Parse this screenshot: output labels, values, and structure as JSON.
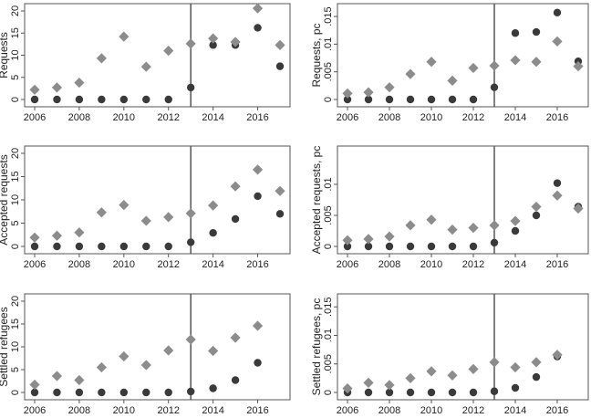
{
  "colors": {
    "series_circle": "#3a3a3a",
    "series_diamond": "#8c8c8c",
    "frame": "#555555",
    "vline": "#555555"
  },
  "chart_data": [
    {
      "type": "scatter",
      "ylabel": "Requests",
      "xlim": [
        2006,
        2017
      ],
      "ylim": [
        0,
        20
      ],
      "xticks": [
        2006,
        2008,
        2010,
        2012,
        2014,
        2016
      ],
      "xtick_labels": [
        "2006",
        "2008",
        "2010",
        "2012",
        "2014",
        "2016"
      ],
      "yticks": [
        0,
        5,
        10,
        15,
        20
      ],
      "ytick_labels": [
        "0",
        "5",
        "10",
        "15",
        "20"
      ],
      "vline": 2013,
      "grid": false,
      "legend": "none",
      "series": [
        {
          "marker": "circle",
          "x": [
            2006,
            2007,
            2008,
            2009,
            2010,
            2011,
            2012,
            2013,
            2014,
            2015,
            2016,
            2017
          ],
          "values": [
            0,
            0,
            0,
            0,
            0,
            0,
            0,
            2.7,
            12.3,
            12.3,
            16.2,
            7.5
          ]
        },
        {
          "marker": "diamond",
          "x": [
            2006,
            2007,
            2008,
            2009,
            2010,
            2011,
            2012,
            2013,
            2014,
            2015,
            2016,
            2017
          ],
          "values": [
            2.2,
            2.7,
            3.8,
            9.3,
            14.2,
            7.4,
            11.0,
            12.6,
            13.8,
            13.0,
            20.6,
            12.3
          ]
        }
      ]
    },
    {
      "type": "scatter",
      "ylabel": "Requests, pc",
      "xlim": [
        2006,
        2017
      ],
      "ylim": [
        0,
        0.016
      ],
      "xticks": [
        2006,
        2008,
        2010,
        2012,
        2014,
        2016
      ],
      "xtick_labels": [
        "2006",
        "2008",
        "2010",
        "2012",
        "2014",
        "2016"
      ],
      "yticks": [
        0,
        0.005,
        0.01,
        0.015
      ],
      "ytick_labels": [
        "0",
        ".005",
        ".01",
        ".015"
      ],
      "vline": 2013,
      "grid": false,
      "legend": "none",
      "series": [
        {
          "marker": "circle",
          "x": [
            2006,
            2007,
            2008,
            2009,
            2010,
            2011,
            2012,
            2013,
            2014,
            2015,
            2016,
            2017
          ],
          "values": [
            0,
            0,
            0,
            0,
            0,
            0,
            0,
            0.0022,
            0.012,
            0.0122,
            0.0157,
            0.0069
          ]
        },
        {
          "marker": "diamond",
          "x": [
            2006,
            2007,
            2008,
            2009,
            2010,
            2011,
            2012,
            2013,
            2014,
            2015,
            2016,
            2017
          ],
          "values": [
            0.0011,
            0.0013,
            0.0022,
            0.0046,
            0.0068,
            0.0034,
            0.0057,
            0.0061,
            0.0071,
            0.0068,
            0.0105,
            0.006
          ]
        }
      ]
    },
    {
      "type": "scatter",
      "ylabel": "Accepted requests",
      "xlim": [
        2006,
        2017
      ],
      "ylim": [
        0,
        20
      ],
      "xticks": [
        2006,
        2008,
        2010,
        2012,
        2014,
        2016
      ],
      "xtick_labels": [
        "2006",
        "2008",
        "2010",
        "2012",
        "2014",
        "2016"
      ],
      "yticks": [
        0,
        5,
        10,
        15,
        20
      ],
      "ytick_labels": [
        "0",
        "5",
        "10",
        "15",
        "20"
      ],
      "vline": 2013,
      "grid": false,
      "legend": "none",
      "series": [
        {
          "marker": "circle",
          "x": [
            2006,
            2007,
            2008,
            2009,
            2010,
            2011,
            2012,
            2013,
            2014,
            2015,
            2016,
            2017
          ],
          "values": [
            0,
            0,
            0,
            0,
            0,
            0,
            0,
            0.9,
            2.9,
            5.9,
            10.8,
            7.0
          ]
        },
        {
          "marker": "diamond",
          "x": [
            2006,
            2007,
            2008,
            2009,
            2010,
            2011,
            2012,
            2013,
            2014,
            2015,
            2016,
            2017
          ],
          "values": [
            1.9,
            2.3,
            3.0,
            7.3,
            8.9,
            5.5,
            6.3,
            7.1,
            8.8,
            12.9,
            16.5,
            11.9
          ]
        }
      ]
    },
    {
      "type": "scatter",
      "ylabel": "Accepted requests, pc",
      "xlim": [
        2006,
        2017
      ],
      "ylim": [
        0,
        0.015
      ],
      "xticks": [
        2006,
        2008,
        2010,
        2012,
        2014,
        2016
      ],
      "xtick_labels": [
        "2006",
        "2008",
        "2010",
        "2012",
        "2014",
        "2016"
      ],
      "yticks": [
        0,
        0.005,
        0.01
      ],
      "ytick_labels": [
        "0",
        ".005",
        ".01"
      ],
      "vline": 2013,
      "grid": false,
      "legend": "none",
      "series": [
        {
          "marker": "circle",
          "x": [
            2006,
            2007,
            2008,
            2009,
            2010,
            2011,
            2012,
            2013,
            2014,
            2015,
            2016,
            2017
          ],
          "values": [
            0,
            0,
            0,
            0,
            0,
            0,
            0,
            0.0006,
            0.0025,
            0.005,
            0.0102,
            0.0064
          ]
        },
        {
          "marker": "diamond",
          "x": [
            2006,
            2007,
            2008,
            2009,
            2010,
            2011,
            2012,
            2013,
            2014,
            2015,
            2016,
            2017
          ],
          "values": [
            0.001,
            0.0012,
            0.0016,
            0.0034,
            0.0043,
            0.0027,
            0.003,
            0.0034,
            0.0041,
            0.0064,
            0.0082,
            0.0061
          ]
        }
      ]
    },
    {
      "type": "scatter",
      "ylabel": "Settled refugees",
      "xlim": [
        2006,
        2017
      ],
      "ylim": [
        0,
        20
      ],
      "xticks": [
        2006,
        2008,
        2010,
        2012,
        2014,
        2016
      ],
      "xtick_labels": [
        "2006",
        "2008",
        "2010",
        "2012",
        "2014",
        "2016"
      ],
      "yticks": [
        0,
        5,
        10,
        15,
        20
      ],
      "ytick_labels": [
        "0",
        "5",
        "10",
        "15",
        "20"
      ],
      "vline": 2013,
      "grid": false,
      "legend": "none",
      "series": [
        {
          "marker": "circle",
          "x": [
            2006,
            2007,
            2008,
            2009,
            2010,
            2011,
            2012,
            2013,
            2014,
            2015,
            2016,
            2017
          ],
          "values": [
            0,
            0,
            0,
            0,
            0,
            0,
            0,
            0.2,
            0.9,
            2.7,
            6.5,
            null
          ]
        },
        {
          "marker": "diamond",
          "x": [
            2006,
            2007,
            2008,
            2009,
            2010,
            2011,
            2012,
            2013,
            2014,
            2015,
            2016,
            2017
          ],
          "values": [
            1.7,
            3.6,
            2.7,
            5.5,
            7.9,
            6.0,
            9.2,
            11.6,
            9.1,
            12.0,
            14.6,
            null
          ]
        }
      ]
    },
    {
      "type": "scatter",
      "ylabel": "Settled refugees, pc",
      "xlim": [
        2006,
        2017
      ],
      "ylim": [
        0,
        0.016
      ],
      "xticks": [
        2006,
        2008,
        2010,
        2012,
        2014,
        2016
      ],
      "xtick_labels": [
        "2006",
        "2008",
        "2010",
        "2012",
        "2014",
        "2016"
      ],
      "yticks": [
        0,
        0.005,
        0.01,
        0.015
      ],
      "ytick_labels": [
        "0",
        ".005",
        ".01",
        ".015"
      ],
      "vline": 2013,
      "grid": false,
      "legend": "none",
      "series": [
        {
          "marker": "circle",
          "x": [
            2006,
            2007,
            2008,
            2009,
            2010,
            2011,
            2012,
            2013,
            2014,
            2015,
            2016,
            2017
          ],
          "values": [
            0,
            0,
            0,
            0,
            0,
            0,
            0,
            0.0002,
            0.0008,
            0.0027,
            0.0063,
            null
          ]
        },
        {
          "marker": "diamond",
          "x": [
            2006,
            2007,
            2008,
            2009,
            2010,
            2011,
            2012,
            2013,
            2014,
            2015,
            2016,
            2017
          ],
          "values": [
            0.0007,
            0.0017,
            0.0013,
            0.0025,
            0.0037,
            0.003,
            0.0041,
            0.0053,
            0.0044,
            0.0053,
            0.0066,
            null
          ]
        }
      ]
    }
  ]
}
